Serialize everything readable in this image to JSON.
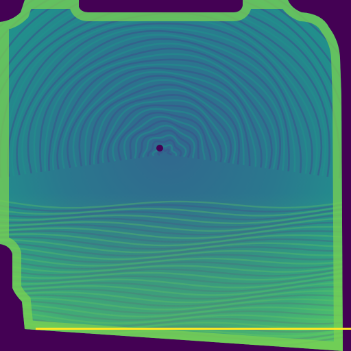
{
  "image": {
    "subject": "fingerprint-scan",
    "colormap": "viridis",
    "colors": {
      "background": "#440154",
      "low": "#3b528b",
      "mid": "#21918c",
      "high": "#5ec962",
      "peak": "#fde725",
      "edge": "#7ad151"
    },
    "marker": {
      "name": "core-point",
      "color": "#440154"
    }
  }
}
